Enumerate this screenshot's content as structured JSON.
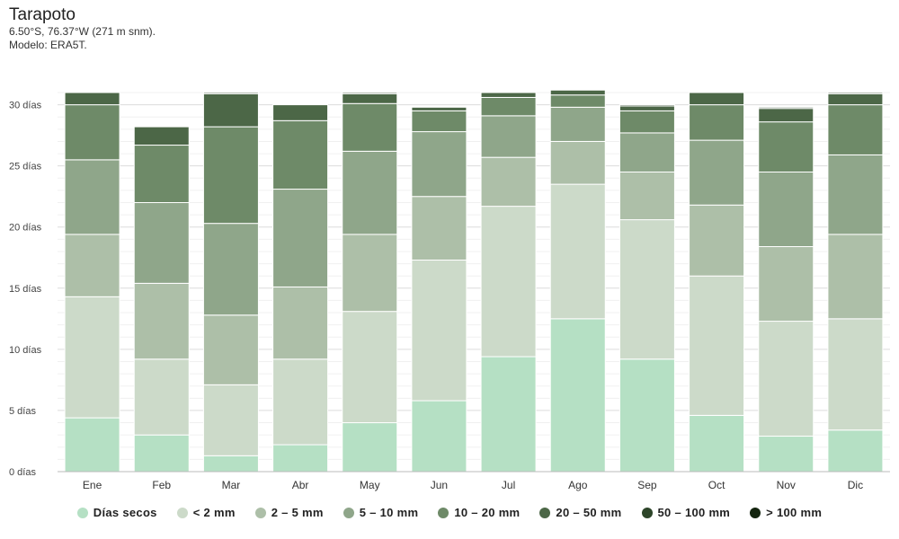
{
  "header": {
    "title": "Tarapoto",
    "location": "6.50°S, 76.37°W (271 m snm).",
    "model": "Modelo: ERA5T."
  },
  "chart_data": {
    "type": "bar",
    "stacked": true,
    "categories": [
      "Ene",
      "Feb",
      "Mar",
      "Abr",
      "May",
      "Jun",
      "Jul",
      "Ago",
      "Sep",
      "Oct",
      "Nov",
      "Dic"
    ],
    "ylim": [
      0,
      31
    ],
    "yticks": [
      0,
      5,
      10,
      15,
      20,
      25,
      30
    ],
    "ytick_labels": [
      "0 días",
      "5 días",
      "10 días",
      "15 días",
      "20 días",
      "25 días",
      "30 días"
    ],
    "legend_position": "bottom",
    "grid": true,
    "series": [
      {
        "name": "Días secos",
        "color": "#b5e0c4",
        "values": [
          4.4,
          3.0,
          1.3,
          2.2,
          4.0,
          5.8,
          9.4,
          12.5,
          9.2,
          4.6,
          2.9,
          3.4
        ]
      },
      {
        "name": "< 2 mm",
        "color": "#ccdac9",
        "values": [
          9.9,
          6.2,
          5.8,
          7.0,
          9.1,
          11.5,
          12.3,
          11.0,
          11.4,
          11.4,
          9.4,
          9.1
        ]
      },
      {
        "name": "2 – 5 mm",
        "color": "#adbfa8",
        "values": [
          5.1,
          6.2,
          5.7,
          5.9,
          6.3,
          5.2,
          4.0,
          3.5,
          3.9,
          5.8,
          6.1,
          6.9
        ]
      },
      {
        "name": "5 – 10 mm",
        "color": "#8fa68a",
        "values": [
          6.1,
          6.6,
          7.5,
          8.0,
          6.8,
          5.3,
          3.4,
          2.8,
          3.2,
          5.3,
          6.1,
          6.5
        ]
      },
      {
        "name": "10 – 20 mm",
        "color": "#6e8a68",
        "values": [
          4.5,
          4.7,
          7.9,
          5.6,
          3.9,
          1.7,
          1.5,
          1.0,
          1.8,
          2.9,
          4.1,
          4.1
        ]
      },
      {
        "name": "20 – 50 mm",
        "color": "#4c6747",
        "values": [
          1.0,
          1.5,
          2.7,
          1.3,
          0.8,
          0.3,
          0.4,
          0.4,
          0.4,
          1.0,
          1.1,
          0.9
        ]
      },
      {
        "name": "50 – 100 mm",
        "color": "#2d4529",
        "values": [
          0.0,
          0.0,
          0.1,
          0.0,
          0.1,
          0.0,
          0.0,
          0.0,
          0.1,
          0.0,
          0.1,
          0.1
        ]
      },
      {
        "name": "> 100 mm",
        "color": "#14250f",
        "values": [
          0.0,
          0.0,
          0.0,
          0.0,
          0.0,
          0.0,
          0.0,
          0.0,
          0.0,
          0.0,
          0.0,
          0.0
        ]
      }
    ]
  }
}
